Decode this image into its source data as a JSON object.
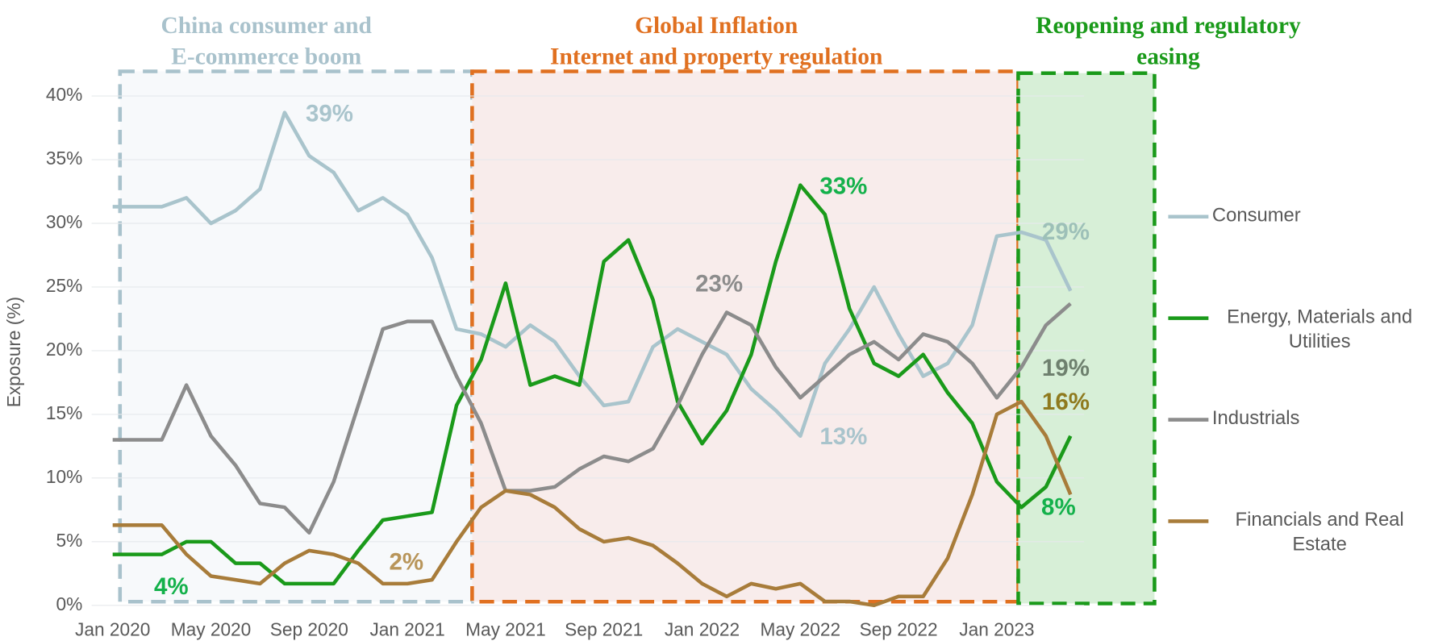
{
  "chart_data": {
    "type": "line",
    "y_label": "Exposure (%)",
    "categories": [
      "Jan 2020",
      null,
      null,
      null,
      "May 2020",
      null,
      null,
      null,
      "Sep 2020",
      null,
      null,
      null,
      "Jan 2021",
      null,
      null,
      null,
      "May 2021",
      null,
      null,
      null,
      "Sep 2021",
      null,
      null,
      null,
      "Jan 2022",
      null,
      null,
      null,
      "May 2022",
      null,
      null,
      null,
      "Sep 2022",
      null,
      null,
      null,
      "Jan 2023",
      null,
      null,
      null
    ],
    "series": [
      {
        "name": "Consumer",
        "color": "#a9c4cc",
        "values": [
          31.3,
          31.3,
          31.3,
          32,
          30,
          31,
          32.7,
          38.7,
          35.3,
          34,
          31,
          32,
          30.7,
          27.3,
          21.7,
          21.3,
          20.3,
          22,
          20.7,
          18,
          15.7,
          16,
          20.3,
          21.7,
          20.7,
          19.7,
          17,
          15.3,
          13.3,
          19,
          21.7,
          25,
          21.3,
          18,
          19,
          22,
          29,
          29.3,
          28.7,
          24.7
        ]
      },
      {
        "name": "Energy, Materials and Utilities",
        "color": "#1a9a1a",
        "values": [
          4,
          4,
          4,
          5,
          5,
          3.3,
          3.3,
          1.7,
          1.7,
          1.7,
          4.3,
          6.7,
          7,
          7.3,
          15.7,
          19.3,
          25.3,
          17.3,
          18,
          17.3,
          27,
          28.7,
          24,
          16,
          12.7,
          15.3,
          19.7,
          27,
          33,
          30.7,
          23.3,
          19,
          18,
          19.7,
          16.7,
          14.3,
          9.7,
          7.7,
          9.3,
          13.3
        ]
      },
      {
        "name": "Industrials",
        "color": "#8c8c8c",
        "values": [
          13,
          13,
          13,
          17.3,
          13.3,
          11,
          8,
          7.7,
          5.7,
          9.7,
          15.7,
          21.7,
          22.3,
          22.3,
          18,
          14.3,
          9,
          9,
          9.3,
          10.7,
          11.7,
          11.3,
          12.3,
          15.7,
          19.7,
          23,
          22,
          18.7,
          16.3,
          18,
          19.7,
          20.7,
          19.3,
          21.3,
          20.7,
          19,
          16.3,
          18.7,
          22,
          23.7
        ]
      },
      {
        "name": "Financials and Real Estate",
        "color": "#a87c3a",
        "values": [
          6.3,
          6.3,
          6.3,
          4,
          2.3,
          2,
          1.7,
          3.3,
          4.3,
          4,
          3.3,
          1.7,
          1.7,
          2,
          5,
          7.7,
          9,
          8.7,
          7.7,
          6,
          5,
          5.3,
          4.7,
          3.3,
          1.7,
          0.7,
          1.7,
          1.3,
          1.7,
          0.3,
          0.3,
          0,
          0.7,
          0.7,
          3.7,
          8.7,
          15,
          16,
          13.3,
          8.7
        ]
      }
    ],
    "ylim": [
      0,
      40
    ],
    "yticks": [
      {
        "value": 0,
        "label": "0%"
      },
      {
        "value": 5,
        "label": "5%"
      },
      {
        "value": 10,
        "label": "10%"
      },
      {
        "value": 15,
        "label": "15%"
      },
      {
        "value": 20,
        "label": "20%"
      },
      {
        "value": 25,
        "label": "25%"
      },
      {
        "value": 30,
        "label": "30%"
      },
      {
        "value": 35,
        "label": "35%"
      },
      {
        "value": 40,
        "label": "40%"
      }
    ],
    "grid": true,
    "legend": "right",
    "periods": [
      {
        "title": [
          "China consumer and",
          "E-commerce boom"
        ],
        "color": "#a9c2cc",
        "fill": "#f7f9fb"
      },
      {
        "title": [
          "Global Inflation",
          "Internet and property regulation"
        ],
        "color": "#e07020",
        "fill": "#f8eceb"
      },
      {
        "title": [
          "Reopening and regulatory",
          "easing"
        ],
        "color": "#1a9a1a",
        "fill": "#d7efd7"
      }
    ],
    "annotations": [
      {
        "text": "39%",
        "color": "#a9c4cc"
      },
      {
        "text": "33%",
        "color": "#14b14b"
      },
      {
        "text": "23%",
        "color": "#8c8c8c"
      },
      {
        "text": "29%",
        "color": "#9dc0b8"
      },
      {
        "text": "19%",
        "color": "#6e806e"
      },
      {
        "text": "16%",
        "color": "#8f7a1e"
      },
      {
        "text": "8%",
        "color": "#14b14b"
      },
      {
        "text": "13%",
        "color": "#a9c4cc"
      },
      {
        "text": "2%",
        "color": "#b8955a"
      },
      {
        "text": "4%",
        "color": "#14b14b"
      }
    ]
  }
}
